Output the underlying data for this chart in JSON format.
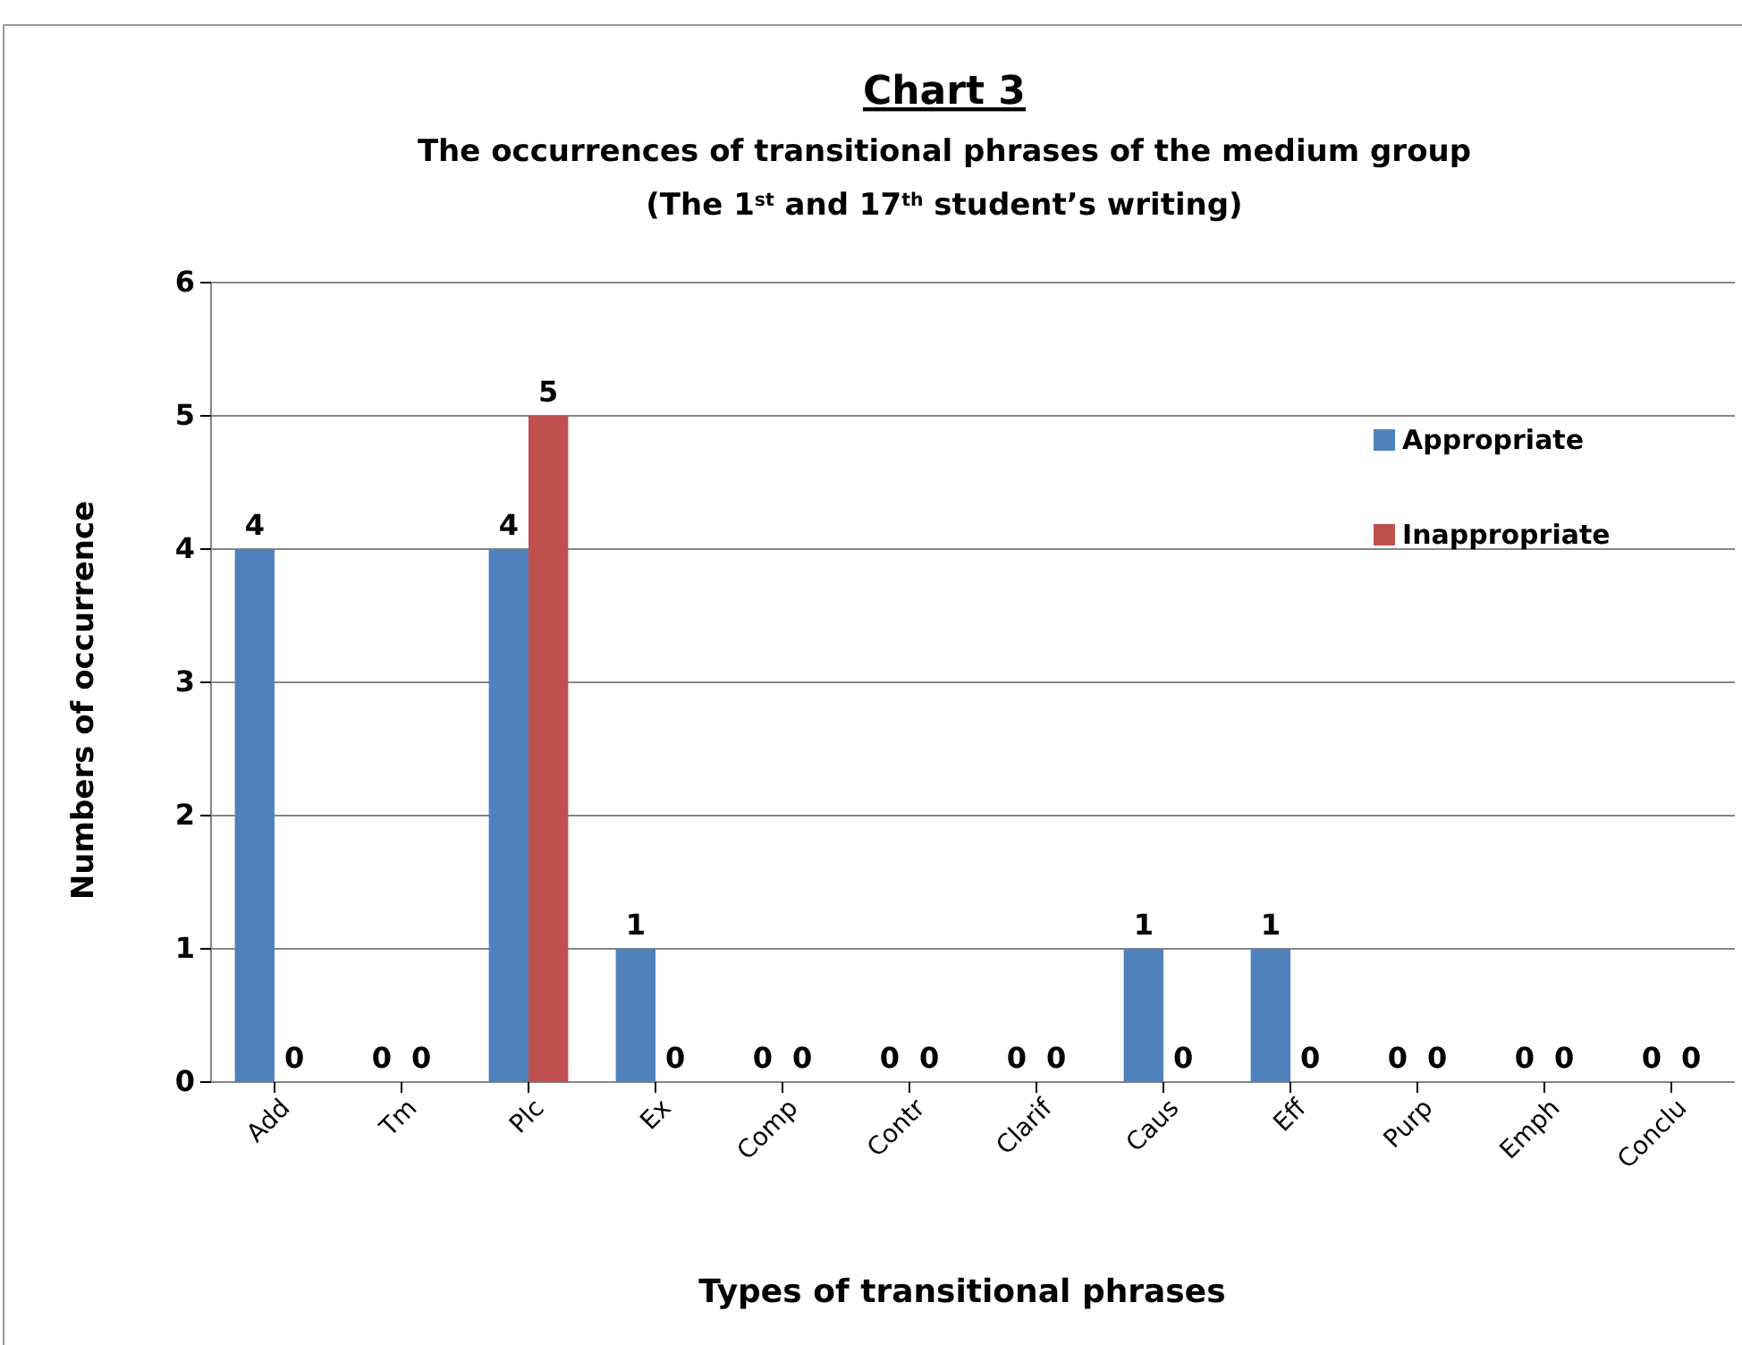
{
  "chart_data": {
    "type": "bar",
    "title": "Chart 3",
    "subtitle": "The occurrences of transitional phrases of the medium group\n(The 1$^{st}$ and 17$^{th}$ student’s writing)",
    "xlabel": "Types of transitional phrases",
    "ylabel": "Numbers of occurrence",
    "categories": [
      "Add",
      "Tm",
      "Plc",
      "Ex",
      "Comp",
      "Contr",
      "Clarif",
      "Caus",
      "Eff",
      "Purp",
      "Emph",
      "Conclu"
    ],
    "series": [
      {
        "name": "Appropriate",
        "color": "#4f81bd",
        "values": [
          4,
          0,
          4,
          1,
          0,
          0,
          0,
          1,
          1,
          0,
          0,
          0
        ]
      },
      {
        "name": "Inappropriate",
        "color": "#c0504d",
        "values": [
          0,
          0,
          5,
          0,
          0,
          0,
          0,
          0,
          0,
          0,
          0,
          0
        ]
      }
    ],
    "ylim": [
      0,
      6
    ],
    "yticks": [
      0,
      1,
      2,
      3,
      4,
      5,
      6
    ],
    "grid": "y",
    "legend": "top right",
    "data_labels": true
  }
}
